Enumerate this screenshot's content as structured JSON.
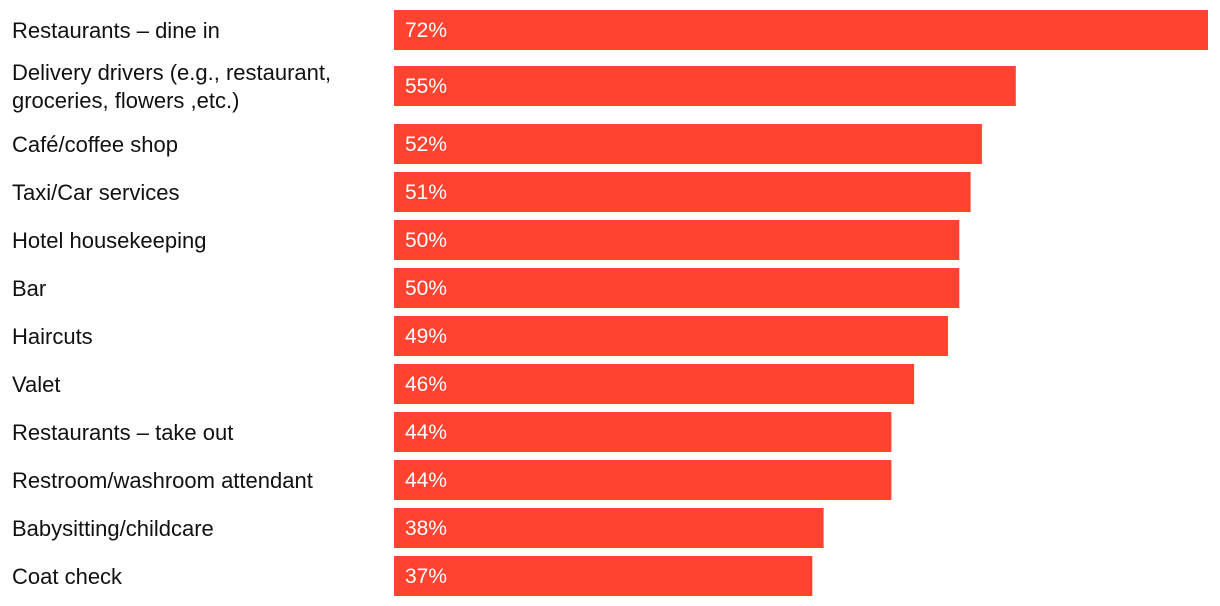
{
  "chart_data": {
    "type": "bar",
    "orientation": "horizontal",
    "categories": [
      "Restaurants – dine in",
      "Delivery drivers (e.g., restaurant, groceries, flowers ,etc.)",
      "Café/coffee shop",
      "Taxi/Car services",
      "Hotel housekeeping",
      "Bar",
      "Haircuts",
      "Valet",
      "Restaurants – take out",
      "Restroom/washroom attendant",
      "Babysitting/childcare",
      "Coat check"
    ],
    "category_lines": [
      [
        "Restaurants – dine in"
      ],
      [
        "Delivery drivers (e.g., restaurant,",
        "groceries, flowers ,etc.)"
      ],
      [
        "Café/coffee shop"
      ],
      [
        "Taxi/Car services"
      ],
      [
        "Hotel housekeeping"
      ],
      [
        "Bar"
      ],
      [
        "Haircuts"
      ],
      [
        "Valet"
      ],
      [
        "Restaurants – take out"
      ],
      [
        "Restroom/washroom attendant"
      ],
      [
        "Babysitting/childcare"
      ],
      [
        "Coat check"
      ]
    ],
    "values": [
      72,
      55,
      52,
      51,
      50,
      50,
      49,
      46,
      44,
      44,
      38,
      37
    ],
    "value_labels": [
      "72%",
      "55%",
      "52%",
      "51%",
      "50%",
      "50%",
      "49%",
      "46%",
      "44%",
      "44%",
      "38%",
      "37%"
    ],
    "xlim": [
      0,
      72
    ],
    "grid": false,
    "legend": "none",
    "bar_color": "#ff4330"
  }
}
